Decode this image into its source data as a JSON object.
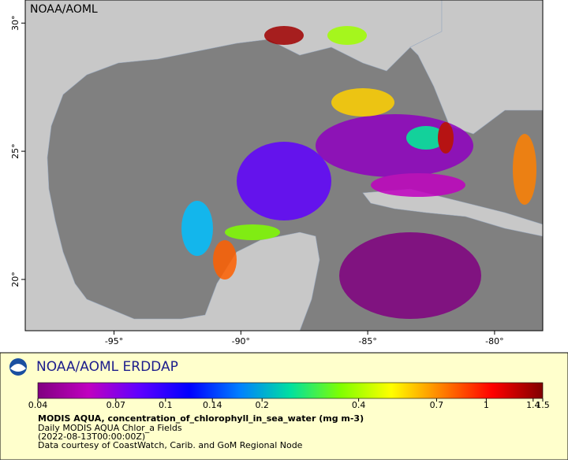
{
  "map": {
    "watermark": "NOAA/AOML",
    "xlim": [
      -98.5,
      -78.1
    ],
    "ylim": [
      18,
      30.9
    ],
    "xticks": [
      {
        "value": -95,
        "label": "-95°"
      },
      {
        "value": -90,
        "label": "-90°"
      },
      {
        "value": -85,
        "label": "-85°"
      },
      {
        "value": -80,
        "label": "-80°"
      }
    ],
    "yticks": [
      {
        "value": 20,
        "label": "20°"
      },
      {
        "value": 25,
        "label": "25°"
      },
      {
        "value": 30,
        "label": "30°"
      }
    ]
  },
  "footer": {
    "brand": "NOAA/AOML ERDDAP",
    "colorbar": {
      "scale": "log",
      "lim": [
        0.04,
        1.5
      ],
      "ticks": [
        0.04,
        0.07,
        0.1,
        0.14,
        0.2,
        0.4,
        0.7,
        1,
        1.4,
        1.5
      ],
      "colors": [
        "#800080",
        "#c000c0",
        "#6000ff",
        "#0000ff",
        "#0080ff",
        "#00e0a0",
        "#80ff00",
        "#ffff00",
        "#ff8000",
        "#ff0000",
        "#800000"
      ]
    },
    "title": "MODIS AQUA, concentration_of_chlorophyll_in_sea_water (mg m-3)",
    "lines": [
      "Daily MODIS AQUA Chlor_a Fields",
      "(2022-08-13T00:00:00Z)",
      "Data courtesy of CoastWatch, Carib. and GoM Regional Node"
    ]
  }
}
